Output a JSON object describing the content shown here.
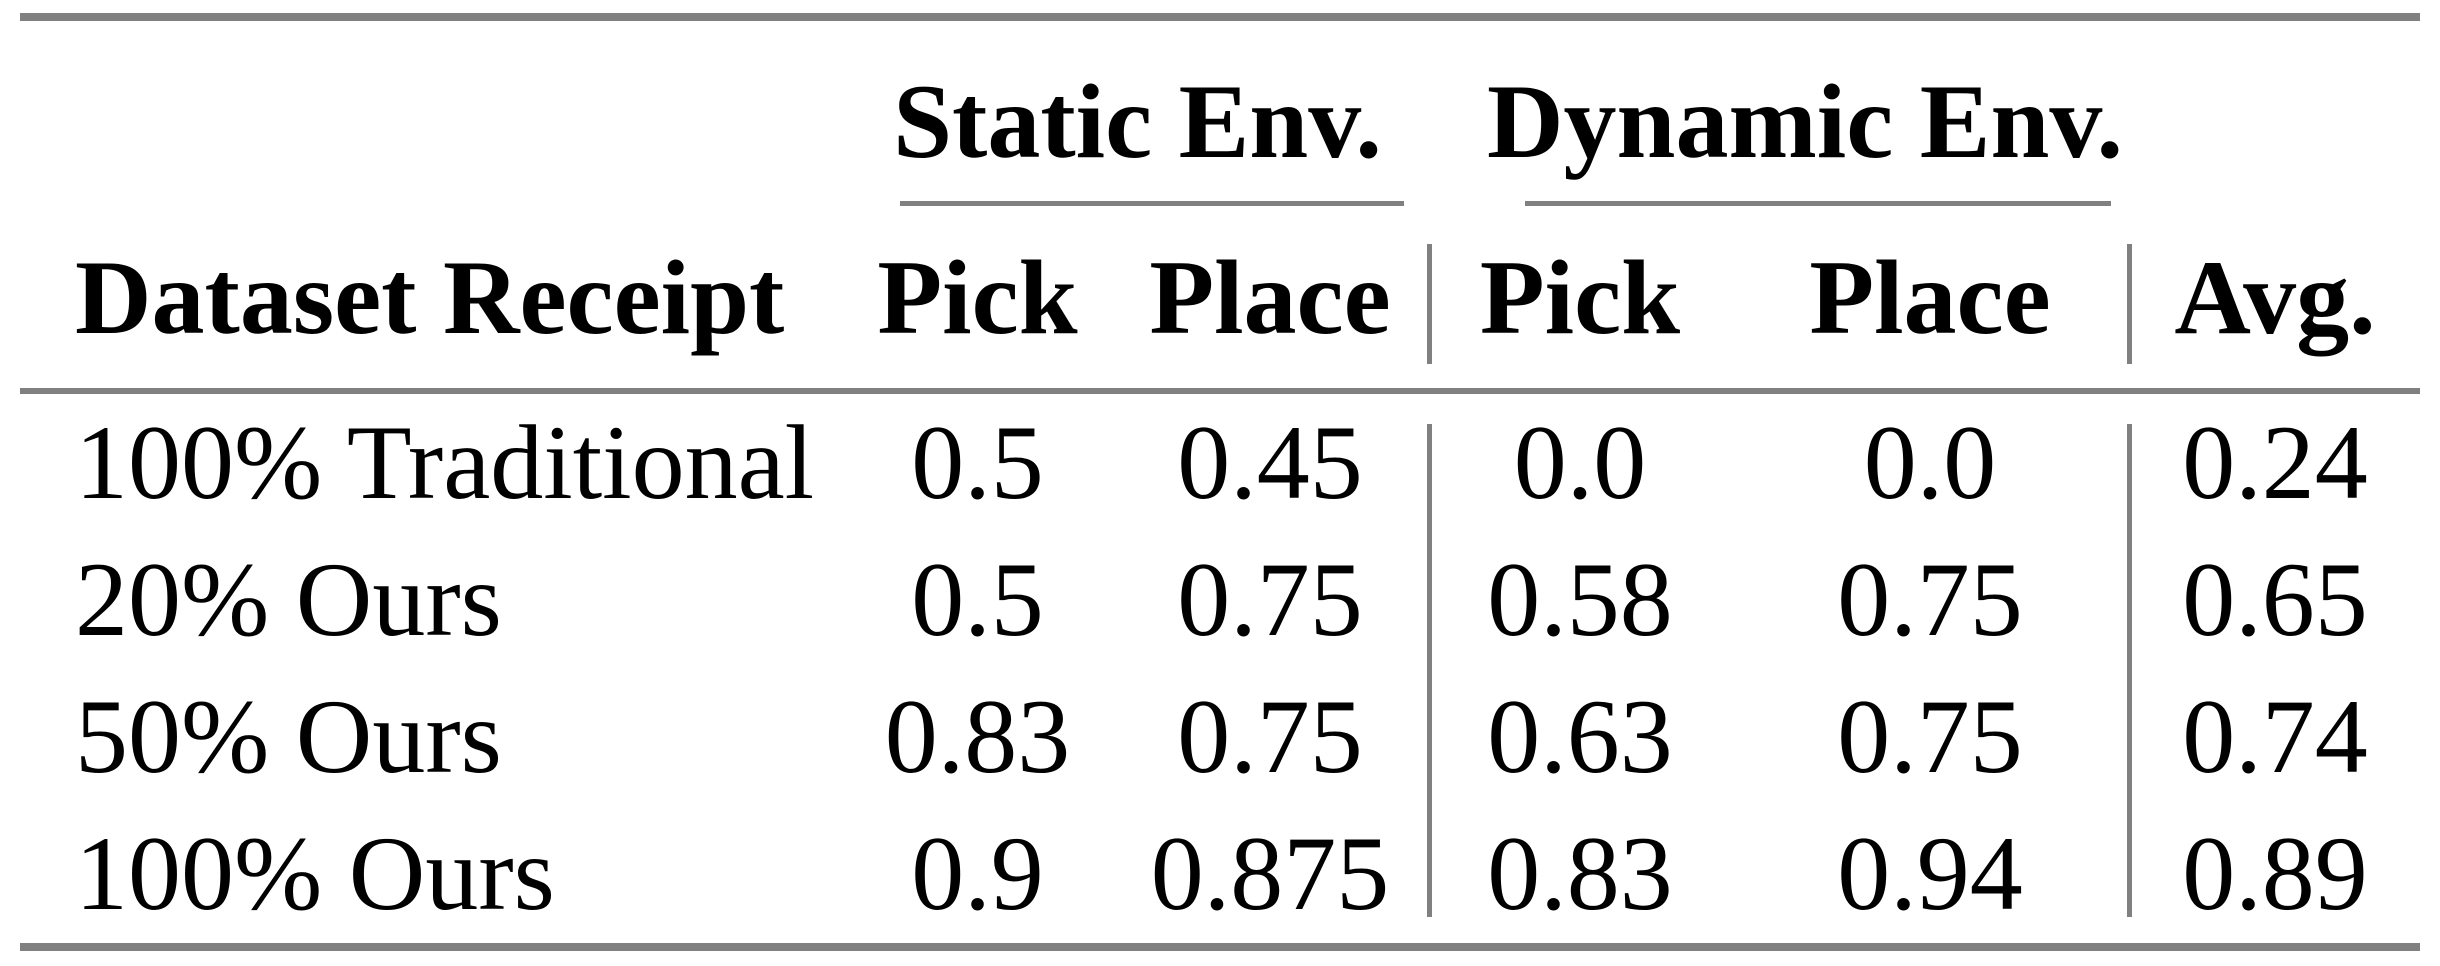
{
  "document": {
    "background": "#ffffff",
    "text_color": "#000000",
    "rule_color": "#808080"
  },
  "table": {
    "corner_header": "Dataset Receipt",
    "group_headers": {
      "static": "Static Env.",
      "dynamic": "Dynamic Env."
    },
    "sub_headers": {
      "static_pick": "Pick",
      "static_place": "Place",
      "dynamic_pick": "Pick",
      "dynamic_place": "Place",
      "avg": "Avg."
    },
    "rows": [
      {
        "label": "100% Traditional",
        "static_pick": "0.5",
        "static_place": "0.45",
        "dynamic_pick": "0.0",
        "dynamic_place": "0.0",
        "avg": "0.24"
      },
      {
        "label": "20% Ours",
        "static_pick": "0.5",
        "static_place": "0.75",
        "dynamic_pick": "0.58",
        "dynamic_place": "0.75",
        "avg": "0.65"
      },
      {
        "label": "50% Ours",
        "static_pick": "0.83",
        "static_place": "0.75",
        "dynamic_pick": "0.63",
        "dynamic_place": "0.75",
        "avg": "0.74"
      },
      {
        "label": "100% Ours",
        "static_pick": "0.9",
        "static_place": "0.875",
        "dynamic_pick": "0.83",
        "dynamic_place": "0.94",
        "avg": "0.89"
      }
    ]
  },
  "chart_data": {
    "type": "table",
    "title": "",
    "columns": [
      "Dataset Receipt",
      "Static Env. Pick",
      "Static Env. Place",
      "Dynamic Env. Pick",
      "Dynamic Env. Place",
      "Avg."
    ],
    "rows": [
      [
        "100% Traditional",
        0.5,
        0.45,
        0.0,
        0.0,
        0.24
      ],
      [
        "20% Ours",
        0.5,
        0.75,
        0.58,
        0.75,
        0.65
      ],
      [
        "50% Ours",
        0.83,
        0.75,
        0.63,
        0.75,
        0.74
      ],
      [
        "100% Ours",
        0.9,
        0.875,
        0.83,
        0.94,
        0.89
      ]
    ]
  }
}
